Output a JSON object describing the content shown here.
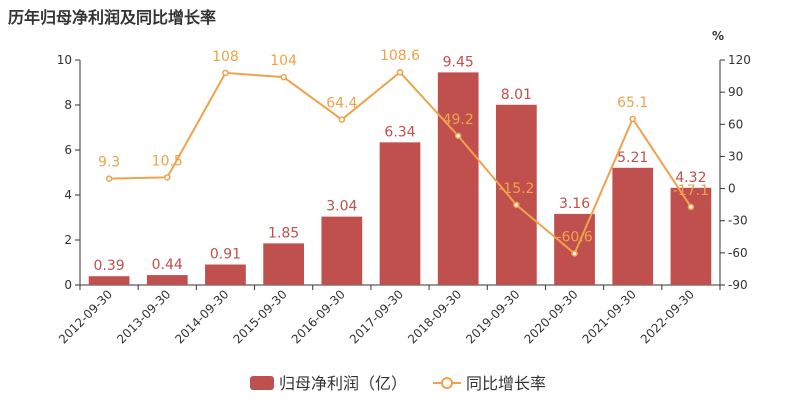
{
  "title": "历年归母净利润及同比增长率",
  "chart_data": {
    "type": "bar+line",
    "categories": [
      "2012-09-30",
      "2013-09-30",
      "2014-09-30",
      "2015-09-30",
      "2016-09-30",
      "2017-09-30",
      "2018-09-30",
      "2019-09-30",
      "2020-09-30",
      "2021-09-30",
      "2022-09-30"
    ],
    "series": [
      {
        "name": "归母净利润（亿）",
        "type": "bar",
        "axis": "left",
        "color": "#c0504d",
        "values": [
          0.39,
          0.44,
          0.91,
          1.85,
          3.04,
          6.34,
          9.45,
          8.01,
          3.16,
          5.21,
          4.32
        ],
        "labels": [
          "0.39",
          "0.44",
          "0.91",
          "1.85",
          "3.04",
          "6.34",
          "9.45",
          "8.01",
          "3.16",
          "5.21",
          "4.32"
        ]
      },
      {
        "name": "同比增长率",
        "type": "line",
        "axis": "right",
        "color": "#f0a24b",
        "values": [
          9.3,
          10.5,
          108,
          104,
          64.4,
          108.6,
          49.2,
          -15.2,
          -60.6,
          65.1,
          -17.1
        ],
        "labels": [
          "9.3",
          "10.5",
          "108",
          "104",
          "64.4",
          "108.6",
          "49.2",
          "-15.2",
          "-60.6",
          "65.1",
          "-17.1"
        ]
      }
    ],
    "y_left": {
      "min": 0,
      "max": 10,
      "ticks": [
        "0",
        "2",
        "4",
        "6",
        "8",
        "10"
      ]
    },
    "y_right": {
      "unit": "%",
      "min": -90,
      "max": 120,
      "ticks": [
        "-90",
        "-60",
        "-30",
        "0",
        "30",
        "60",
        "90",
        "120"
      ]
    },
    "legend": [
      "归母净利润（亿）",
      "同比增长率"
    ],
    "legend_position": "bottom-center"
  }
}
